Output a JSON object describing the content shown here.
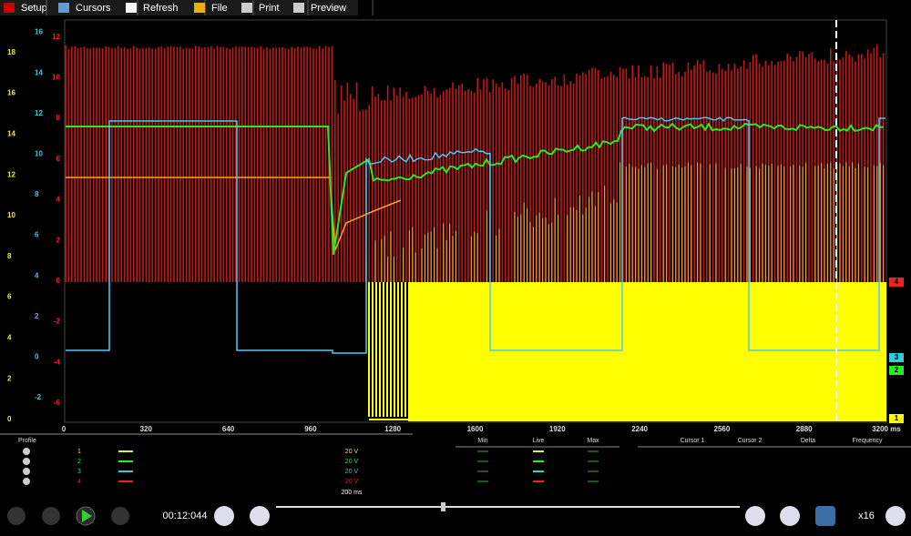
{
  "toolbar": [
    "Setup",
    "Cursors",
    "Refresh",
    "File",
    "Print",
    "Preview"
  ],
  "axes": {
    "ch1": [
      0,
      2,
      4,
      6,
      8,
      10,
      12,
      14,
      16,
      18
    ],
    "ch3": [
      -2,
      0,
      2,
      4,
      6,
      8,
      10,
      12,
      14,
      16
    ],
    "ch4": [
      -6,
      -4,
      -2,
      0,
      2,
      4,
      6,
      8,
      10,
      12
    ]
  },
  "x_ticks": [
    "0",
    "320",
    "640",
    "960",
    "1280",
    "1600",
    "1920",
    "2240",
    "2560",
    "2880",
    "3200 ms"
  ],
  "channel_markers": [
    "4",
    "3",
    "2",
    "1"
  ],
  "table": {
    "profile": "Profile",
    "channels": [
      {
        "num": "1",
        "range": "20 V"
      },
      {
        "num": "2",
        "range": "20 V"
      },
      {
        "num": "3",
        "range": "20 V"
      },
      {
        "num": "4",
        "range": "20 V"
      }
    ],
    "timebase": "200 ms",
    "measure_headers": [
      "Min",
      "Live",
      "Max"
    ],
    "cursor_headers": [
      "Cursor 1",
      "Cursor 2",
      "Delta",
      "Frequency"
    ]
  },
  "playback": {
    "time": "00:12:044",
    "zoom": "x16"
  }
}
